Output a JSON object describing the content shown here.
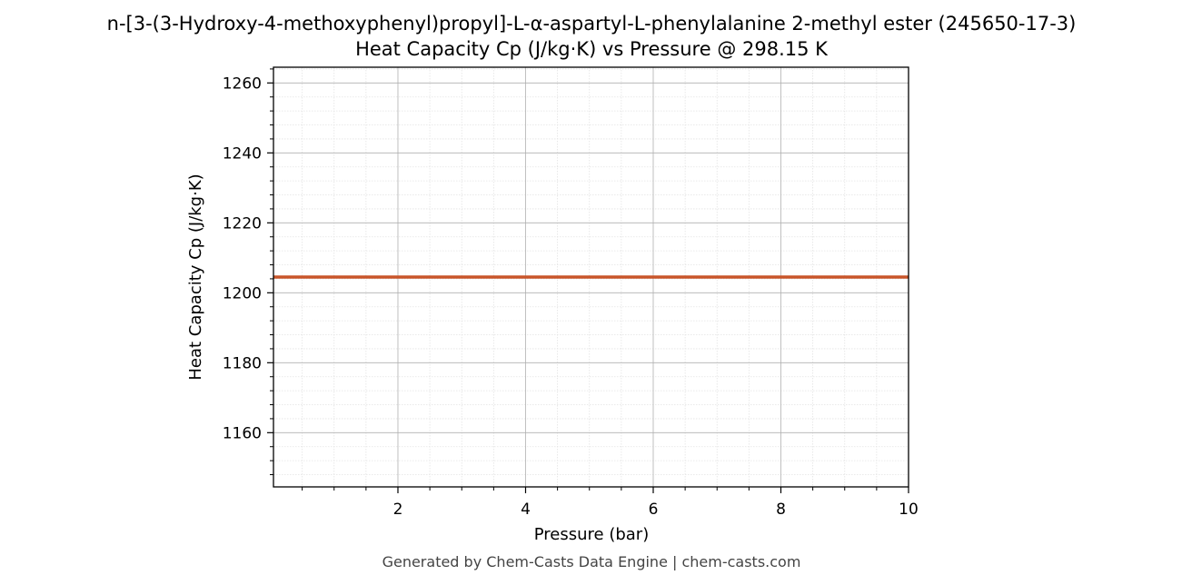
{
  "chart_data": {
    "type": "line",
    "title": "n-[3-(3-Hydroxy-4-methoxyphenyl)propyl]-L-α-aspartyl-L-phenylalanine 2-methyl ester (245650-17-3)",
    "subtitle": "Heat Capacity Cp (J/kg·K) vs Pressure @ 298.15 K",
    "xlabel": "Pressure (bar)",
    "ylabel": "Heat Capacity Cp (J/kg·K)",
    "xlim": [
      0.05,
      10
    ],
    "ylim": [
      1144.5,
      1264.5
    ],
    "x_ticks": [
      2,
      4,
      6,
      8,
      10
    ],
    "y_ticks": [
      1160,
      1180,
      1200,
      1220,
      1240,
      1260
    ],
    "grid": true,
    "series": [
      {
        "color": "#c8552a",
        "x": [
          0.05,
          10
        ],
        "y": [
          1204.5,
          1204.5
        ]
      }
    ]
  },
  "footer": "Generated by Chem-Casts Data Engine | chem-casts.com"
}
